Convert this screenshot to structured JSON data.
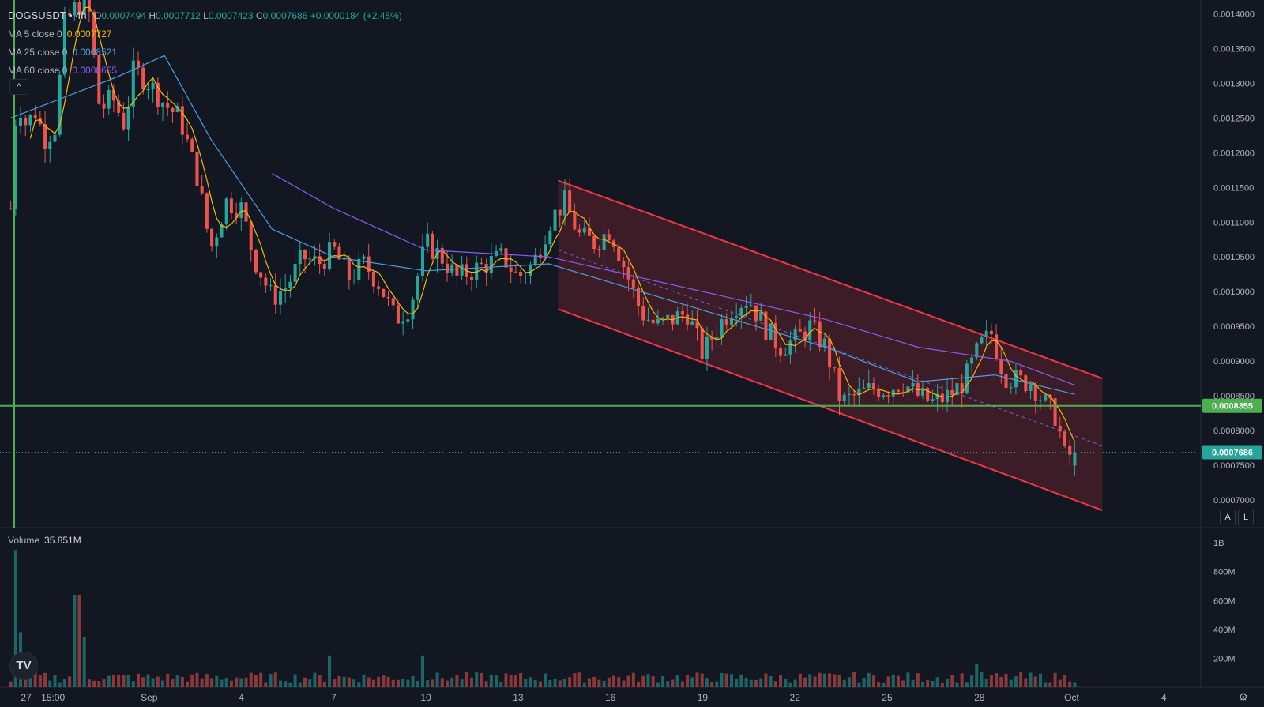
{
  "header": {
    "symbol": "DOGSUSDT",
    "interval": "4h",
    "open_label": "O",
    "open": "0.0007494",
    "high_label": "H",
    "high": "0.0007712",
    "low_label": "L",
    "low": "0.0007423",
    "close_label": "C",
    "close": "0.0007686",
    "change": "+0.0000184 (+2.45%)"
  },
  "indicators": [
    {
      "label": "MA 5 close 0",
      "value": "0.0007727",
      "color": "#f0b90b"
    },
    {
      "label": "MA 25 close 0",
      "value": "0.0008521",
      "color": "#4d9de0"
    },
    {
      "label": "MA 60 close 0",
      "value": "0.0008655",
      "color": "#8b5cf6"
    }
  ],
  "volume_panel": {
    "label": "Volume",
    "value": "35.851M"
  },
  "buttons": {
    "collapse": "^",
    "auto": "A",
    "log": "L",
    "logo": "TV",
    "settings": "⚙"
  },
  "colors": {
    "background": "#131722",
    "up": "#26a69a",
    "down": "#ef5350",
    "channel": "#f23645",
    "hline": "#4caf50"
  },
  "chart_data": {
    "type": "candlestick",
    "symbol": "DOGSUSDT",
    "interval": "4h",
    "price_axis": {
      "range": [
        0.00066,
        0.00142
      ],
      "ticks": [
        "0.0014000",
        "0.0013500",
        "0.0013000",
        "0.0012500",
        "0.0012000",
        "0.0011500",
        "0.0011000",
        "0.0010500",
        "0.0010000",
        "0.0009500",
        "0.0009000",
        "0.0008500",
        "0.0008000",
        "0.0007500",
        "0.0007000"
      ]
    },
    "time_axis": {
      "range_days": [
        -3.85,
        35.2
      ],
      "ticks": [
        {
          "label": "27",
          "day": -3
        },
        {
          "label": "15:00",
          "day": -2.125
        },
        {
          "label": "Sep",
          "day": 1
        },
        {
          "label": "4",
          "day": 4
        },
        {
          "label": "7",
          "day": 7
        },
        {
          "label": "10",
          "day": 10
        },
        {
          "label": "13",
          "day": 13
        },
        {
          "label": "16",
          "day": 16
        },
        {
          "label": "19",
          "day": 19
        },
        {
          "label": "22",
          "day": 22
        },
        {
          "label": "25",
          "day": 25
        },
        {
          "label": "28",
          "day": 28
        },
        {
          "label": "Oct",
          "day": 31
        },
        {
          "label": "4",
          "day": 34
        }
      ]
    },
    "volume_axis": {
      "range": [
        0,
        1050
      ],
      "unit": "M",
      "ticks": [
        "1B",
        "800M",
        "600M",
        "400M",
        "200M"
      ]
    },
    "horizontal_line": {
      "price": 0.0008355,
      "label": "0.0008355"
    },
    "last_price": {
      "price": 0.0007686,
      "label": "0.0007686"
    },
    "vertical_line_day": -3.4,
    "descending_channel": {
      "start_day": 14.3,
      "end_day": 32.0,
      "upper": [
        0.00116,
        0.000875
      ],
      "lower": [
        0.000975,
        0.000685
      ],
      "mid": [
        0.00106,
        0.000778
      ]
    },
    "path_points": [
      [
        -3.5,
        0.00112
      ],
      [
        -3.3,
        0.00128
      ],
      [
        -3.0,
        0.00124
      ],
      [
        -2.7,
        0.00126
      ],
      [
        -2.4,
        0.00122
      ],
      [
        -2.0,
        0.00124
      ],
      [
        -1.8,
        0.00138
      ],
      [
        -1.4,
        0.00141
      ],
      [
        -1.0,
        0.00142
      ],
      [
        -0.6,
        0.00126
      ],
      [
        -0.2,
        0.00128
      ],
      [
        0.2,
        0.00124
      ],
      [
        0.5,
        0.00132
      ],
      [
        1.0,
        0.0013
      ],
      [
        1.5,
        0.00127
      ],
      [
        2.0,
        0.00125
      ],
      [
        2.6,
        0.00116
      ],
      [
        3.0,
        0.00106
      ],
      [
        3.5,
        0.00113
      ],
      [
        4.0,
        0.00112
      ],
      [
        4.4,
        0.00105
      ],
      [
        5.0,
        0.00099
      ],
      [
        5.5,
        0.00101
      ],
      [
        6.0,
        0.00105
      ],
      [
        6.5,
        0.00104
      ],
      [
        7.0,
        0.00106
      ],
      [
        7.5,
        0.00102
      ],
      [
        8.0,
        0.00104
      ],
      [
        8.5,
        0.00101
      ],
      [
        9.0,
        0.00096
      ],
      [
        9.5,
        0.00098
      ],
      [
        10.0,
        0.00107
      ],
      [
        10.5,
        0.00105
      ],
      [
        11.0,
        0.00102
      ],
      [
        11.5,
        0.00103
      ],
      [
        12.0,
        0.00104
      ],
      [
        12.5,
        0.00105
      ],
      [
        13.0,
        0.00102
      ],
      [
        13.5,
        0.00104
      ],
      [
        14.0,
        0.0011
      ],
      [
        14.5,
        0.00113
      ],
      [
        15.0,
        0.00108
      ],
      [
        15.5,
        0.00107
      ],
      [
        16.0,
        0.00109
      ],
      [
        16.5,
        0.00103
      ],
      [
        17.0,
        0.00097
      ],
      [
        17.5,
        0.00095
      ],
      [
        18.0,
        0.00096
      ],
      [
        18.5,
        0.00097
      ],
      [
        19.0,
        0.00091
      ],
      [
        19.5,
        0.00095
      ],
      [
        20.0,
        0.00098
      ],
      [
        20.5,
        0.00099
      ],
      [
        21.0,
        0.00095
      ],
      [
        21.5,
        0.00092
      ],
      [
        22.0,
        0.00093
      ],
      [
        22.5,
        0.00095
      ],
      [
        23.0,
        0.00092
      ],
      [
        23.5,
        0.00084
      ],
      [
        24.0,
        0.00085
      ],
      [
        24.5,
        0.00086
      ],
      [
        25.0,
        0.00086
      ],
      [
        25.5,
        0.00087
      ],
      [
        26.0,
        0.00085
      ],
      [
        26.5,
        0.00084
      ],
      [
        27.0,
        0.00085
      ],
      [
        27.5,
        0.00087
      ],
      [
        28.0,
        0.00092
      ],
      [
        28.4,
        0.00094
      ],
      [
        28.8,
        0.00088
      ],
      [
        29.3,
        0.00087
      ],
      [
        29.7,
        0.00087
      ],
      [
        30.1,
        0.00084
      ],
      [
        30.5,
        0.00082
      ],
      [
        30.8,
        0.00076
      ],
      [
        31.1,
        0.00077
      ]
    ],
    "ma_anchor_points": {
      "ma5": [
        [
          -3.5,
          0.00118
        ],
        [
          31.1,
          0.0007727
        ]
      ],
      "ma25": [
        [
          -3.5,
          0.00125
        ],
        [
          0.0,
          0.00131
        ],
        [
          1.5,
          0.00134
        ],
        [
          3.0,
          0.00122
        ],
        [
          5.0,
          0.00109
        ],
        [
          7.0,
          0.00105
        ],
        [
          10.0,
          0.00103
        ],
        [
          14.0,
          0.00104
        ],
        [
          17.0,
          0.001
        ],
        [
          20.0,
          0.00096
        ],
        [
          23.0,
          0.00092
        ],
        [
          26.0,
          0.00087
        ],
        [
          28.5,
          0.00088
        ],
        [
          31.1,
          0.0008521
        ]
      ],
      "ma60": [
        [
          5.0,
          0.00117
        ],
        [
          7.0,
          0.00112
        ],
        [
          10.0,
          0.00106
        ],
        [
          14.0,
          0.00105
        ],
        [
          17.0,
          0.00102
        ],
        [
          20.0,
          0.00099
        ],
        [
          23.0,
          0.00096
        ],
        [
          26.0,
          0.00092
        ],
        [
          29.0,
          0.0009
        ],
        [
          31.1,
          0.0008655
        ]
      ]
    },
    "volume_spikes": [
      {
        "day": -3.35,
        "volume_m": 950
      },
      {
        "day": -3.2,
        "volume_m": 380
      },
      {
        "day": -1.35,
        "volume_m": 640
      },
      {
        "day": -1.1,
        "volume_m": 350
      },
      {
        "day": 6.9,
        "volume_m": 220
      },
      {
        "day": 9.9,
        "volume_m": 220
      },
      {
        "day": 27.9,
        "volume_m": 160
      }
    ],
    "volume_baseline_m": 95,
    "bar_count": 218,
    "current_volume_m": 35.851
  }
}
